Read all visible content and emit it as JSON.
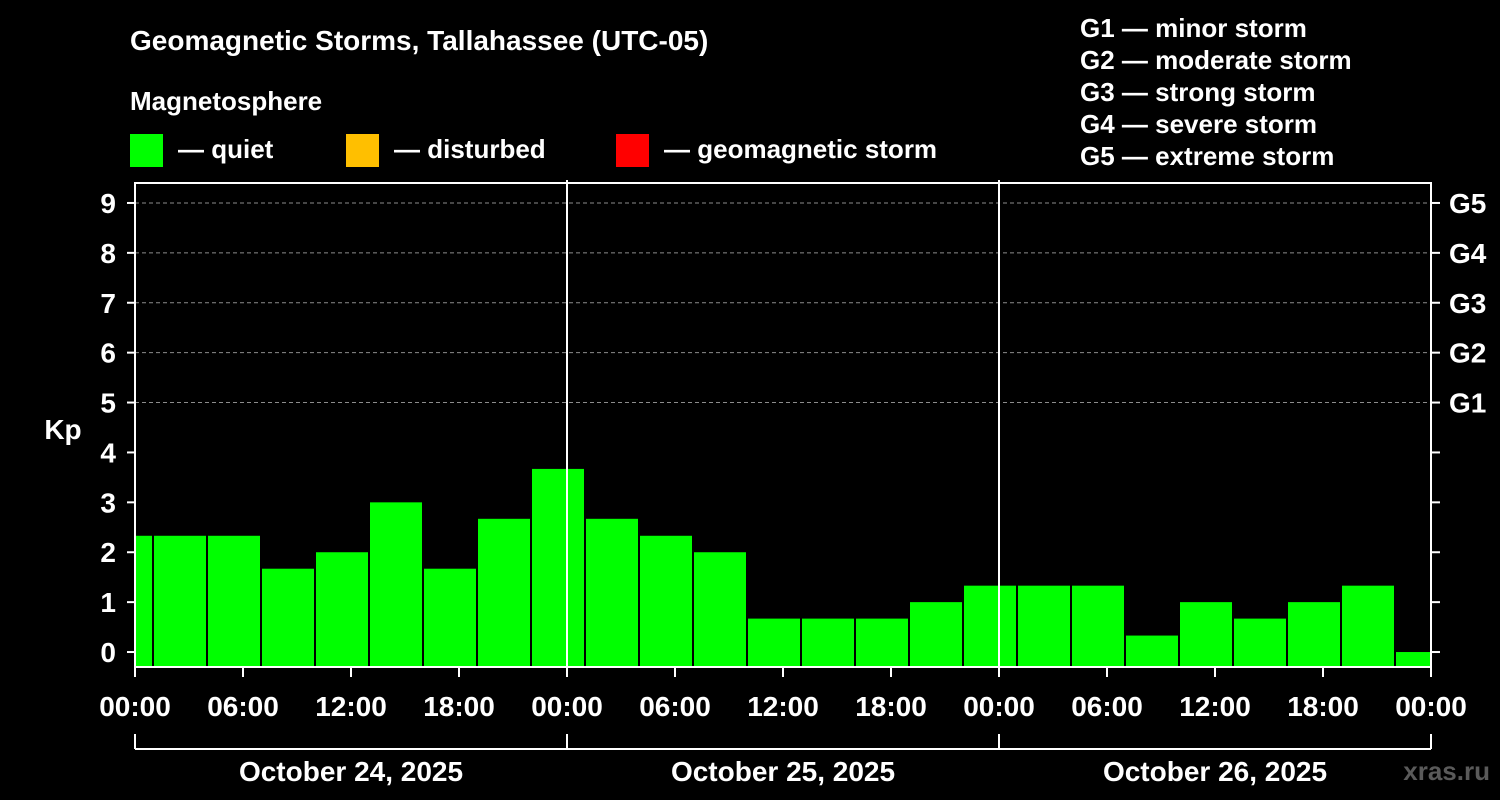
{
  "colors": {
    "background": "#000000",
    "axis": "#ffffff",
    "grid": "#8c8c8c",
    "quiet": "#00ff00",
    "disturbed": "#ffbf00",
    "storm": "#ff0000"
  },
  "header": {
    "title": "Geomagnetic Storms, Tallahassee (UTC-05)",
    "subtitle": "Magnetosphere"
  },
  "legend": [
    {
      "label": "— quiet",
      "color": "#00ff00"
    },
    {
      "label": "— disturbed",
      "color": "#ffbf00"
    },
    {
      "label": "— geomagnetic storm",
      "color": "#ff0000"
    }
  ],
  "storm_scale": [
    "G1 — minor storm",
    "G2 — moderate storm",
    "G3 — strong storm",
    "G4 — severe storm",
    "G5 — extreme storm"
  ],
  "watermark": "xras.ru",
  "chart_data": {
    "type": "bar",
    "title": "Geomagnetic Storms, Tallahassee (UTC-05)",
    "ylabel": "Kp",
    "ylim": [
      -0.3,
      9.4
    ],
    "xlim_hours": [
      0,
      72
    ],
    "y_ticks": [
      "0",
      "1",
      "2",
      "3",
      "4",
      "5",
      "6",
      "7",
      "8",
      "9"
    ],
    "g_ticks": [
      {
        "kp": 5,
        "label": "G1"
      },
      {
        "kp": 6,
        "label": "G2"
      },
      {
        "kp": 7,
        "label": "G3"
      },
      {
        "kp": 8,
        "label": "G4"
      },
      {
        "kp": 9,
        "label": "G5"
      }
    ],
    "x_ticks": [
      "00:00",
      "06:00",
      "12:00",
      "18:00",
      "00:00",
      "06:00",
      "12:00",
      "18:00",
      "00:00",
      "06:00",
      "12:00",
      "18:00",
      "00:00"
    ],
    "dates": [
      "October 24, 2025",
      "October 25, 2025",
      "October 26, 2025"
    ],
    "bar_width_hours": 3,
    "bars": [
      {
        "start": -2,
        "value": 2.33
      },
      {
        "start": 1,
        "value": 2.33
      },
      {
        "start": 4,
        "value": 2.33
      },
      {
        "start": 7,
        "value": 1.67
      },
      {
        "start": 10,
        "value": 2.0
      },
      {
        "start": 13,
        "value": 3.0
      },
      {
        "start": 16,
        "value": 1.67
      },
      {
        "start": 19,
        "value": 2.67
      },
      {
        "start": 22,
        "value": 3.67
      },
      {
        "start": 25,
        "value": 2.67
      },
      {
        "start": 28,
        "value": 2.33
      },
      {
        "start": 31,
        "value": 2.0
      },
      {
        "start": 34,
        "value": 0.67
      },
      {
        "start": 37,
        "value": 0.67
      },
      {
        "start": 40,
        "value": 0.67
      },
      {
        "start": 43,
        "value": 1.0
      },
      {
        "start": 46,
        "value": 1.33
      },
      {
        "start": 49,
        "value": 1.33
      },
      {
        "start": 52,
        "value": 1.33
      },
      {
        "start": 55,
        "value": 0.33
      },
      {
        "start": 58,
        "value": 1.0
      },
      {
        "start": 61,
        "value": 0.67
      },
      {
        "start": 64,
        "value": 1.0
      },
      {
        "start": 67,
        "value": 1.33
      },
      {
        "start": 70,
        "value": 0.0
      }
    ]
  }
}
